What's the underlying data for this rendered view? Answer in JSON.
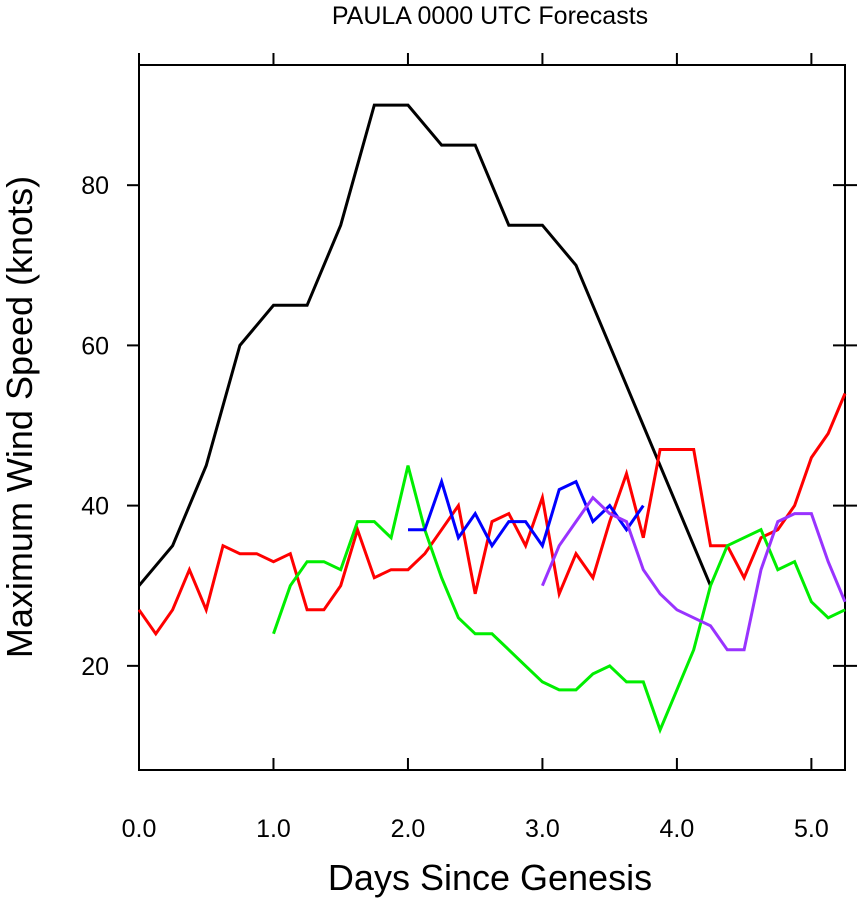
{
  "chart_data": {
    "type": "line",
    "title": "PAULA 0000 UTC Forecasts",
    "xlabel": "Days Since Genesis",
    "ylabel": "Maximum Wind Speed (knots)",
    "xlim": [
      0,
      5.25
    ],
    "ylim": [
      7,
      95
    ],
    "xticks": [
      {
        "value": 0,
        "label": "0.0"
      },
      {
        "value": 1,
        "label": "1.0"
      },
      {
        "value": 2,
        "label": "2.0"
      },
      {
        "value": 3,
        "label": "3.0"
      },
      {
        "value": 4,
        "label": "4.0"
      },
      {
        "value": 5,
        "label": "5.0"
      }
    ],
    "yticks": [
      {
        "value": 20,
        "label": "20"
      },
      {
        "value": 40,
        "label": "40"
      },
      {
        "value": 60,
        "label": "60"
      },
      {
        "value": 80,
        "label": "80"
      }
    ],
    "grid": false,
    "series": [
      {
        "color": "#000000",
        "x": [
          0,
          0.25,
          0.5,
          0.75,
          1.0,
          1.25,
          1.5,
          1.75,
          2.0,
          2.25,
          2.5,
          2.75,
          3.0,
          3.25,
          3.5,
          3.75,
          4.0,
          4.25
        ],
        "y": [
          30,
          35,
          45,
          60,
          65,
          65,
          75,
          90,
          90,
          85,
          85,
          75,
          75,
          70,
          60,
          50,
          40,
          30
        ]
      },
      {
        "color": "#ff0000",
        "x": [
          0,
          0.125,
          0.25,
          0.375,
          0.5,
          0.625,
          0.75,
          0.875,
          1.0,
          1.125,
          1.25,
          1.375,
          1.5,
          1.625,
          1.75,
          1.875,
          2.0,
          2.125,
          2.25,
          2.375,
          2.5,
          2.625,
          2.75,
          2.875,
          3.0,
          3.125,
          3.25,
          3.375,
          3.5,
          3.625,
          3.75,
          3.875,
          4.0,
          4.125,
          4.25,
          4.375,
          4.5,
          4.625,
          4.75,
          4.875,
          5.0,
          5.125,
          5.25
        ],
        "y": [
          27,
          24,
          27,
          32,
          27,
          35,
          34,
          34,
          33,
          34,
          27,
          27,
          30,
          37,
          31,
          32,
          32,
          34,
          37,
          40,
          29,
          38,
          39,
          35,
          41,
          29,
          34,
          31,
          38,
          44,
          36,
          47,
          47,
          47,
          35,
          35,
          31,
          36,
          37,
          40,
          46,
          49,
          54
        ]
      },
      {
        "color": "#00ee00",
        "x": [
          1.0,
          1.125,
          1.25,
          1.375,
          1.5,
          1.625,
          1.75,
          1.875,
          2.0,
          2.125,
          2.25,
          2.375,
          2.5,
          2.625,
          2.75,
          2.875,
          3.0,
          3.125,
          3.25,
          3.375,
          3.5,
          3.625,
          3.75,
          3.875,
          4.0,
          4.125,
          4.25,
          4.375,
          4.5,
          4.625,
          4.75,
          4.875,
          5.0,
          5.125,
          5.25
        ],
        "y": [
          24,
          30,
          33,
          33,
          32,
          38,
          38,
          36,
          45,
          37,
          31,
          26,
          24,
          24,
          22,
          20,
          18,
          17,
          17,
          19,
          20,
          18,
          18,
          12,
          17,
          22,
          30,
          35,
          36,
          37,
          32,
          33,
          28,
          26,
          27
        ]
      },
      {
        "color": "#0000ff",
        "x": [
          2.0,
          2.125,
          2.25,
          2.375,
          2.5,
          2.625,
          2.75,
          2.875,
          3.0,
          3.125,
          3.25,
          3.375,
          3.5,
          3.625,
          3.75
        ],
        "y": [
          37,
          37,
          43,
          36,
          39,
          35,
          38,
          38,
          35,
          42,
          43,
          38,
          40,
          37,
          40
        ]
      },
      {
        "color": "#9933ff",
        "x": [
          3.0,
          3.125,
          3.25,
          3.375,
          3.5,
          3.625,
          3.75,
          3.875,
          4.0,
          4.125,
          4.25,
          4.375,
          4.5,
          4.625,
          4.75,
          4.875,
          5.0,
          5.125,
          5.25
        ],
        "y": [
          30,
          35,
          38,
          41,
          39,
          38,
          32,
          29,
          27,
          26,
          25,
          22,
          22,
          32,
          38,
          39,
          39,
          33,
          28
        ]
      }
    ]
  }
}
